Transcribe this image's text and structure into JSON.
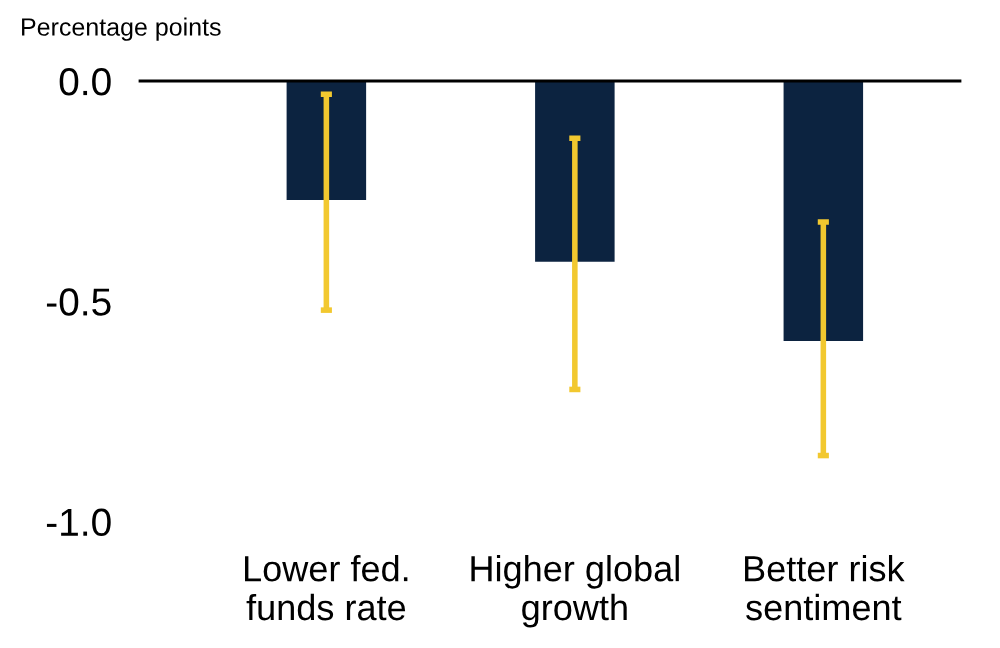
{
  "chart_data": {
    "type": "bar",
    "ylabel": "Percentage points",
    "categories": [
      "Lower fed.\nfunds rate",
      "Higher global\ngrowth",
      "Better risk\nsentiment"
    ],
    "series": [
      {
        "color": "#0c2340",
        "values": [
          -0.27,
          -0.41,
          -0.59
        ],
        "errors": [
          [
            -0.52,
            -0.03
          ],
          [
            -0.7,
            -0.13
          ],
          [
            -0.85,
            -0.32
          ]
        ]
      }
    ],
    "ylim": [
      -1.0,
      0.0
    ],
    "yticks": [
      {
        "value": 0.0,
        "label": "0.0"
      },
      {
        "value": -0.5,
        "label": "-0.5"
      },
      {
        "value": -1.0,
        "label": "-1.0"
      }
    ],
    "grid": false,
    "legend": false
  }
}
